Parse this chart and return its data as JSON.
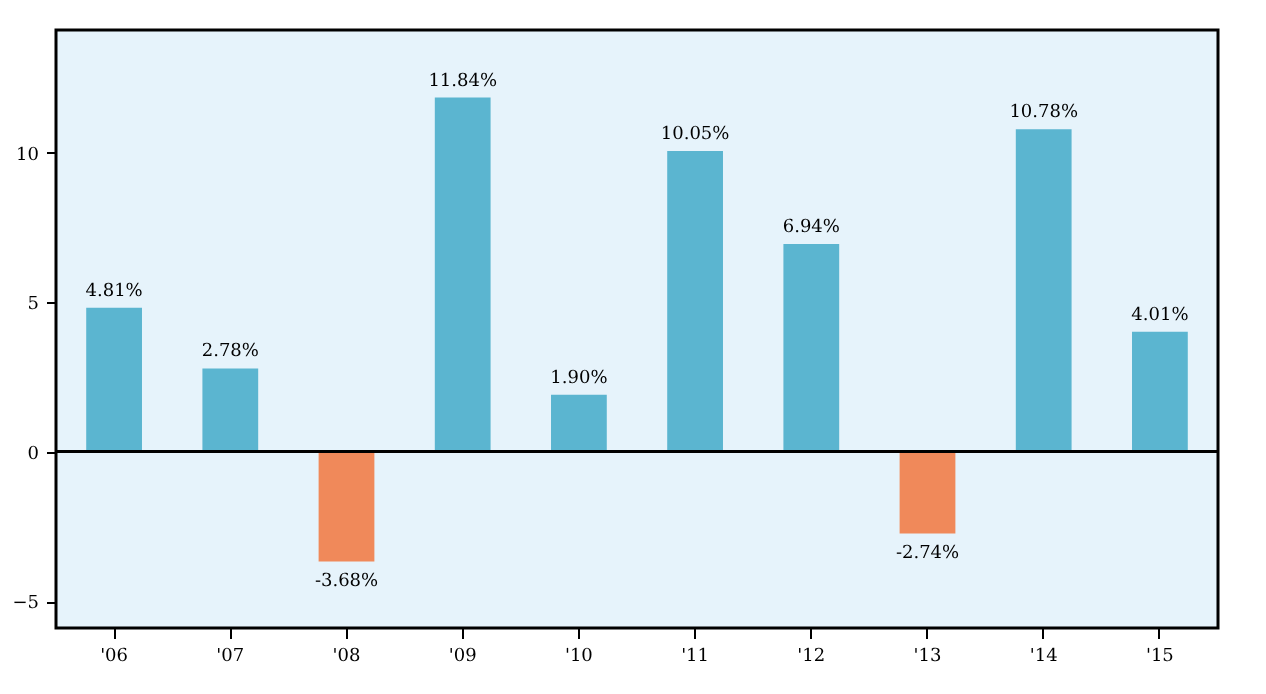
{
  "chart_data": {
    "type": "bar",
    "categories": [
      "'06",
      "'07",
      "'08",
      "'09",
      "'10",
      "'11",
      "'12",
      "'13",
      "'14",
      "'15"
    ],
    "values": [
      4.81,
      2.78,
      -3.68,
      11.84,
      1.9,
      10.05,
      6.94,
      -2.74,
      10.78,
      4.01
    ],
    "colors": [
      "#5bb5d0",
      "#5bb5d0",
      "#f0895a",
      "#5bb5d0",
      "#5bb5d0",
      "#5bb5d0",
      "#5bb5d0",
      "#f0895a",
      "#5bb5d0",
      "#5bb5d0"
    ],
    "value_labels": [
      "4.81%",
      "2.78%",
      "-3.68%",
      "11.84%",
      "1.90%",
      "10.05%",
      "6.94%",
      "-2.74%",
      "10.78%",
      "4.01%"
    ],
    "ylim": [
      -5.9,
      14.1
    ],
    "yticks": [
      {
        "value": -5,
        "label": "−5"
      },
      0,
      5,
      10
    ],
    "ref_lines": [
      {
        "axis": "y",
        "value": 0,
        "color": "#000000"
      }
    ],
    "grid": false,
    "legend": false
  }
}
